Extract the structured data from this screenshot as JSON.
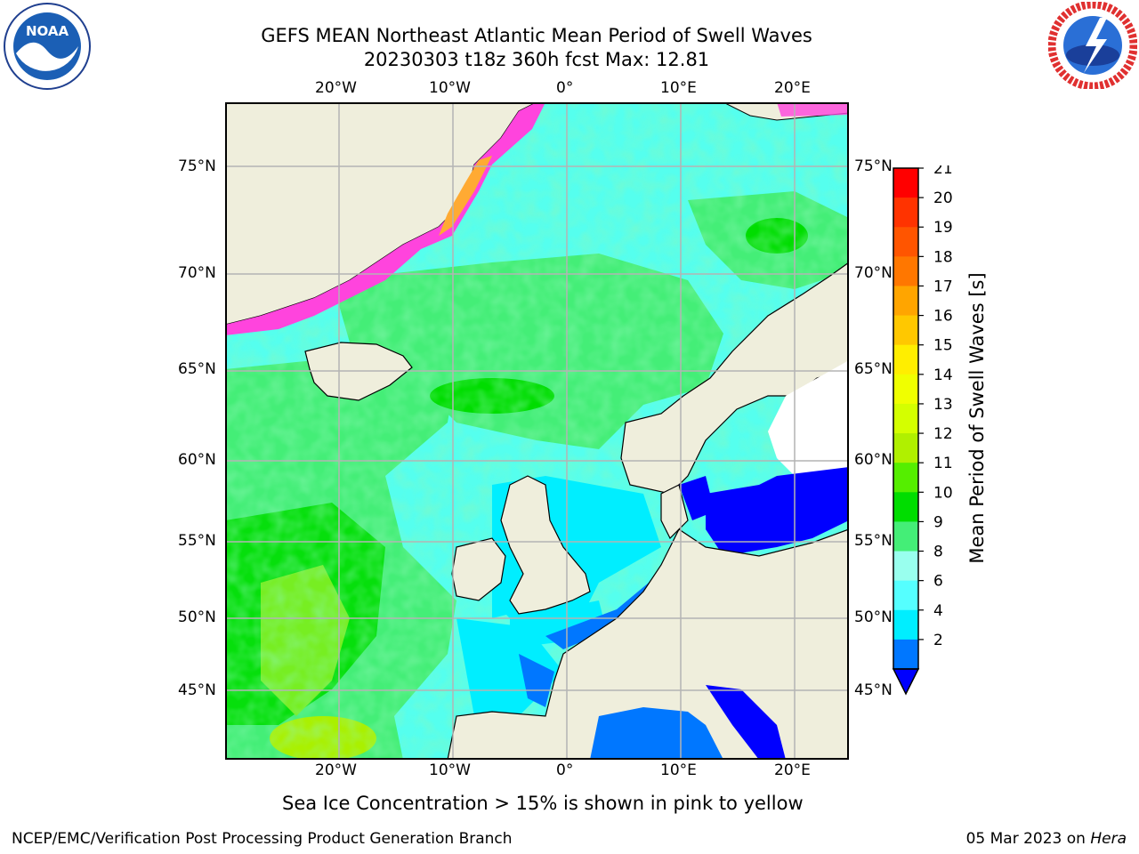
{
  "title_line1": "GEFS MEAN Northeast Atlantic Mean Period of Swell Waves",
  "title_line2": "20230303 t18z 360h fcst   Max: 12.81",
  "caption": "Sea Ice Concentration > 15% is shown in pink to yellow",
  "footer_left": "NCEP/EMC/Verification Post Processing Product Generation Branch",
  "footer_right_date": "05 Mar 2023 on ",
  "footer_right_host": "Hera",
  "logos": {
    "left": "noaa-logo",
    "right": "nws-logo"
  },
  "lon_labels_top": [
    "20°W",
    "10°W",
    "0°",
    "10°E",
    "20°E"
  ],
  "lon_labels_bottom": [
    "20°W",
    "10°W",
    "0°",
    "10°E",
    "20°E"
  ],
  "lat_labels_left": [
    "75°N",
    "70°N",
    "65°N",
    "60°N",
    "55°N",
    "50°N",
    "45°N"
  ],
  "lat_labels_right": [
    "75°N",
    "70°N",
    "65°N",
    "60°N",
    "55°N",
    "50°N",
    "45°N"
  ],
  "colorbar": {
    "label": "Mean Period of Swell Waves [s]",
    "ticks": [
      "21",
      "20",
      "19",
      "18",
      "17",
      "16",
      "15",
      "14",
      "13",
      "12",
      "11",
      "10",
      "9",
      "8",
      "6",
      "4",
      "2"
    ],
    "colors": [
      "#ff0000",
      "#ff3300",
      "#ff5500",
      "#ff7700",
      "#ffa500",
      "#ffc800",
      "#ffee00",
      "#f0ff00",
      "#d4ff00",
      "#b0f000",
      "#55ee00",
      "#00dd00",
      "#44ee77",
      "#99ffee",
      "#55ffff",
      "#00eeff",
      "#0077ff"
    ],
    "under_color": "#0000ff"
  },
  "palette": {
    "land": "#efeedc",
    "ocean_light": "#55ffee",
    "ocean_green": "#44ee77",
    "ocean_bright_green": "#00dd00",
    "cyan": "#00eeff",
    "blue": "#0077ff",
    "deep_blue": "#0000ff",
    "ice_pink": "#ff44dd",
    "ice_yellow": "#ffdd33",
    "grid": "#b4b4b4"
  }
}
